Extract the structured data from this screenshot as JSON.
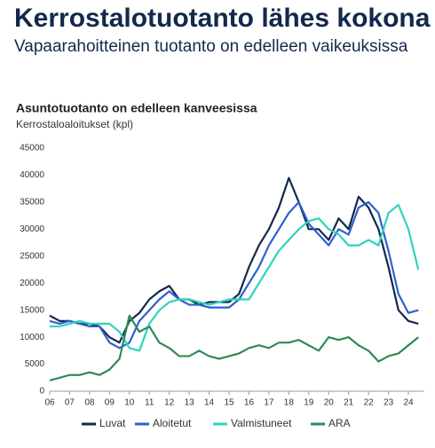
{
  "header": {
    "title": "Kerrostalotuotanto lähes kokona",
    "subtitle": "Vapaarahoitteinen tuotanto on edelleen vaikeuksissa"
  },
  "chart_data": {
    "type": "line",
    "title": "Asuntotuotanto on edelleen kanveesissa",
    "y_label": "Kerrostaloaloitukset (kpl)",
    "x": [
      2006,
      2006.5,
      2007,
      2007.5,
      2008,
      2008.5,
      2009,
      2009.5,
      2010,
      2010.5,
      2011,
      2011.5,
      2012,
      2012.5,
      2013,
      2013.5,
      2014,
      2014.5,
      2015,
      2015.5,
      2016,
      2016.5,
      2017,
      2017.5,
      2018,
      2018.5,
      2019,
      2019.5,
      2020,
      2020.5,
      2021,
      2021.5,
      2022,
      2022.5,
      2023,
      2023.5,
      2024,
      2024.5
    ],
    "series": [
      {
        "name": "Luvat",
        "color": "#13294b",
        "values": [
          14000,
          13000,
          13000,
          12500,
          12500,
          12000,
          10000,
          9000,
          13000,
          14500,
          17000,
          18500,
          19500,
          17000,
          17000,
          16000,
          16500,
          16500,
          16500,
          18000,
          23000,
          27000,
          30000,
          34000,
          39500,
          35000,
          30000,
          30000,
          28000,
          32000,
          30000,
          36000,
          34000,
          30000,
          23000,
          15000,
          13000,
          12500
        ]
      },
      {
        "name": "Aloitetut",
        "color": "#2f5fd0",
        "values": [
          13000,
          12500,
          13000,
          12500,
          12000,
          12000,
          9000,
          8000,
          9000,
          13000,
          15000,
          17000,
          18500,
          17000,
          16000,
          16000,
          15500,
          15500,
          15500,
          17000,
          20000,
          23000,
          27000,
          30000,
          33000,
          35000,
          31000,
          29000,
          27000,
          30000,
          29000,
          34000,
          35000,
          33000,
          26000,
          18000,
          14500,
          15000
        ]
      },
      {
        "name": "Valmistuneet",
        "color": "#2dd4bf",
        "values": [
          12000,
          12000,
          12500,
          13000,
          12500,
          12500,
          12500,
          11000,
          8000,
          7500,
          12500,
          15000,
          16500,
          17000,
          17000,
          16500,
          16000,
          16500,
          17000,
          17000,
          17000,
          20000,
          23000,
          26000,
          28000,
          30000,
          31500,
          32000,
          30000,
          29000,
          27000,
          27000,
          28000,
          27000,
          33000,
          34500,
          30000,
          22500
        ]
      },
      {
        "name": "ARA",
        "color": "#2e8b57",
        "values": [
          2000,
          2500,
          3000,
          3000,
          3500,
          3000,
          4000,
          6000,
          14000,
          11000,
          12000,
          9000,
          8000,
          6500,
          6500,
          7500,
          6500,
          6000,
          6500,
          7000,
          8000,
          8500,
          8000,
          9000,
          9000,
          9500,
          8500,
          7500,
          10000,
          9500,
          10000,
          8500,
          7500,
          5500,
          6500,
          7000,
          8500,
          10000
        ]
      }
    ],
    "xlim": [
      2006,
      2024.8
    ],
    "ylim": [
      0,
      45000
    ],
    "yticks": [
      0,
      5000,
      10000,
      15000,
      20000,
      25000,
      30000,
      35000,
      40000,
      45000
    ],
    "xticks": [
      {
        "value": 2006,
        "label": "06"
      },
      {
        "value": 2007,
        "label": "07"
      },
      {
        "value": 2008,
        "label": "08"
      },
      {
        "value": 2009,
        "label": "09"
      },
      {
        "value": 2010,
        "label": "10"
      },
      {
        "value": 2011,
        "label": "11"
      },
      {
        "value": 2012,
        "label": "12"
      },
      {
        "value": 2013,
        "label": "13"
      },
      {
        "value": 2014,
        "label": "14"
      },
      {
        "value": 2015,
        "label": "15"
      },
      {
        "value": 2016,
        "label": "16"
      },
      {
        "value": 2017,
        "label": "17"
      },
      {
        "value": 2018,
        "label": "18"
      },
      {
        "value": 2019,
        "label": "19"
      },
      {
        "value": 2020,
        "label": "20"
      },
      {
        "value": 2021,
        "label": "21"
      },
      {
        "value": 2022,
        "label": "22"
      },
      {
        "value": 2023,
        "label": "23"
      },
      {
        "value": 2024,
        "label": "24"
      }
    ],
    "grid": false,
    "legend": "bottom"
  }
}
